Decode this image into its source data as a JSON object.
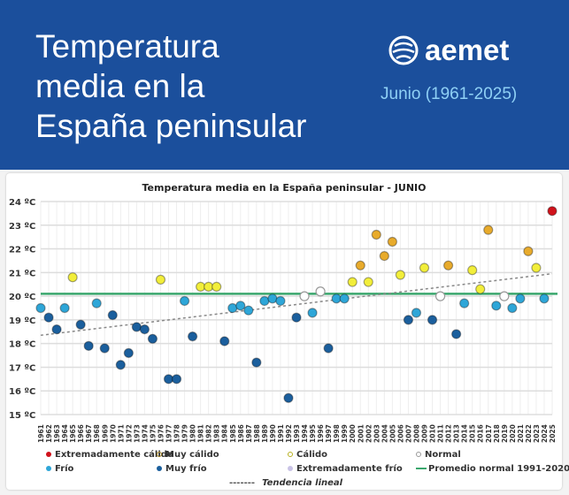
{
  "header": {
    "title_lines": [
      "Temperatura",
      "media en la",
      "España peninsular"
    ],
    "logo_text": "aemet",
    "period": "Junio (1961-2025)"
  },
  "chart_data": {
    "type": "scatter",
    "title": "Temperatura media en la España peninsular - JUNIO",
    "ylim": [
      15,
      24
    ],
    "yticks": [
      "15 ºC",
      "16 ºC",
      "17 ºC",
      "18 ºC",
      "19 ºC",
      "20 ºC",
      "21 ºC",
      "22 ºC",
      "23 ºC",
      "24 ºC"
    ],
    "grid": true,
    "legend_placement": "bottom",
    "categories_colors": {
      "ec": "#d0121b",
      "mc": "#e8ab2c",
      "c": "#f2ee3a",
      "n": "#ffffff",
      "f": "#2ea6d8",
      "mf": "#1b5f9d",
      "ef": "#c9c3e6"
    },
    "legend": [
      {
        "key": "ec",
        "label": "Extremadamente cálido"
      },
      {
        "key": "mc",
        "label": "Muy cálido"
      },
      {
        "key": "c",
        "label": "Cálido"
      },
      {
        "key": "n",
        "label": "Normal"
      },
      {
        "key": "f",
        "label": "Frío"
      },
      {
        "key": "mf",
        "label": "Muy frío"
      },
      {
        "key": "ef",
        "label": "Extremadamente frío"
      },
      {
        "key": "normal_line",
        "label": "Promedio normal 1991-2020"
      },
      {
        "key": "trend",
        "label": "Tendencia lineal"
      }
    ],
    "normal_value": 20.1,
    "normal_color": "#3aa76d",
    "trend": {
      "start": [
        1961,
        18.35
      ],
      "end": [
        2025,
        20.95
      ]
    },
    "x": [
      1961,
      1962,
      1963,
      1964,
      1965,
      1966,
      1967,
      1968,
      1969,
      1970,
      1971,
      1972,
      1973,
      1974,
      1975,
      1976,
      1977,
      1978,
      1979,
      1980,
      1981,
      1982,
      1983,
      1984,
      1985,
      1986,
      1987,
      1988,
      1989,
      1990,
      1991,
      1992,
      1993,
      1994,
      1995,
      1996,
      1997,
      1998,
      1999,
      2000,
      2001,
      2002,
      2003,
      2004,
      2005,
      2006,
      2007,
      2008,
      2009,
      2010,
      2011,
      2012,
      2013,
      2014,
      2015,
      2016,
      2017,
      2018,
      2019,
      2020,
      2021,
      2022,
      2023,
      2024,
      2025
    ],
    "y": [
      19.5,
      19.1,
      18.6,
      19.5,
      20.8,
      18.8,
      17.9,
      19.7,
      17.8,
      19.2,
      17.1,
      17.6,
      18.7,
      18.6,
      18.2,
      20.7,
      16.5,
      16.5,
      19.8,
      18.3,
      20.4,
      20.4,
      20.4,
      18.1,
      19.5,
      19.6,
      19.4,
      17.2,
      19.8,
      19.9,
      19.8,
      15.7,
      19.1,
      20.0,
      19.3,
      20.2,
      17.8,
      19.9,
      19.9,
      20.6,
      21.3,
      20.6,
      22.6,
      21.7,
      22.3,
      20.9,
      19.0,
      19.3,
      21.2,
      19.0,
      20.0,
      21.3,
      18.4,
      19.7,
      21.1,
      20.3,
      22.8,
      19.6,
      20.0,
      19.5,
      19.9,
      21.9,
      21.2,
      19.9,
      23.6
    ],
    "class": [
      "f",
      "mf",
      "mf",
      "f",
      "c",
      "mf",
      "mf",
      "f",
      "mf",
      "mf",
      "mf",
      "mf",
      "mf",
      "mf",
      "mf",
      "c",
      "mf",
      "mf",
      "f",
      "mf",
      "c",
      "c",
      "c",
      "mf",
      "f",
      "f",
      "f",
      "mf",
      "f",
      "f",
      "f",
      "mf",
      "mf",
      "n",
      "f",
      "n",
      "mf",
      "f",
      "f",
      "c",
      "mc",
      "c",
      "mc",
      "mc",
      "mc",
      "c",
      "mf",
      "f",
      "c",
      "mf",
      "n",
      "mc",
      "mf",
      "f",
      "c",
      "c",
      "mc",
      "f",
      "n",
      "f",
      "f",
      "mc",
      "c",
      "f",
      "ec"
    ]
  }
}
